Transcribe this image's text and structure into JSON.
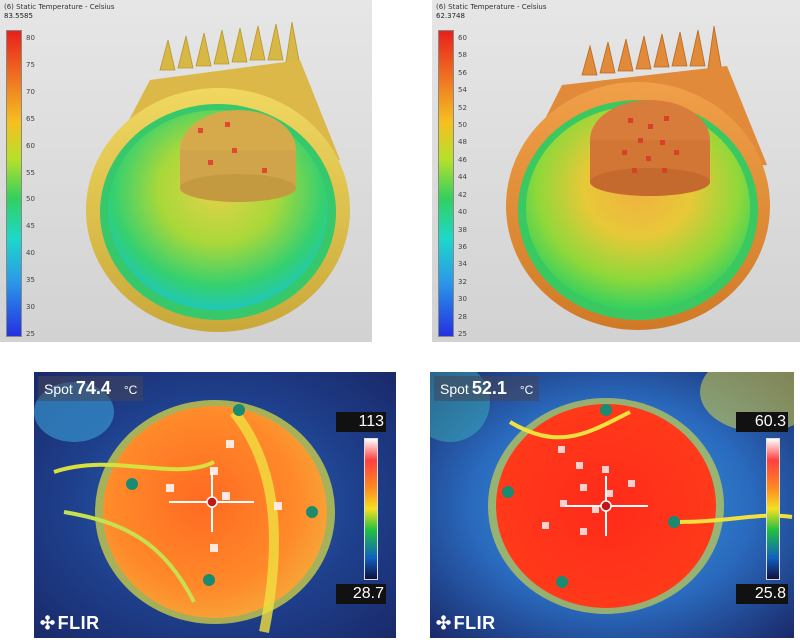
{
  "panels": {
    "sim_left": {
      "scale_title": "(6) Static Temperature - Celsius",
      "scale_max": "83.5585",
      "ticks": [
        "80",
        "75",
        "70",
        "65",
        "60",
        "55",
        "50",
        "45",
        "40",
        "35",
        "30",
        "25"
      ]
    },
    "sim_right": {
      "scale_title": "(6) Static Temperature - Celsius",
      "scale_max": "62.3748",
      "ticks": [
        "60",
        "58",
        "56",
        "54",
        "52",
        "50",
        "48",
        "46",
        "44",
        "42",
        "40",
        "38",
        "36",
        "34",
        "32",
        "30",
        "28",
        "25"
      ]
    },
    "ir_left": {
      "spot_label": "Spot",
      "spot_value": "74.4",
      "spot_unit": "°C",
      "scale_max": "113",
      "scale_min": "28.7",
      "brand": "FLIR"
    },
    "ir_right": {
      "spot_label": "Spot",
      "spot_value": "52.1",
      "spot_unit": "°C",
      "scale_max": "60.3",
      "scale_min": "25.8",
      "brand": "FLIR"
    }
  },
  "colors": {
    "heatsink_left": "#e3c04a",
    "heatsink_right": "#e38a36",
    "ir_hot": "#ff3a1a",
    "ir_background": "#1a2a6a"
  }
}
